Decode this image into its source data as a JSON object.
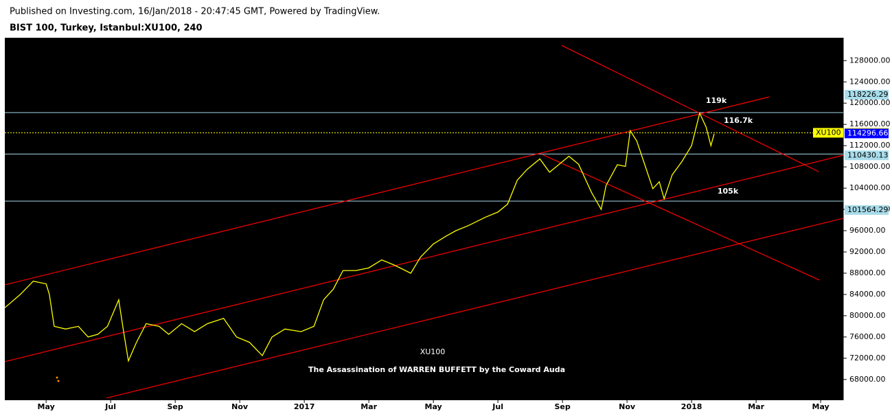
{
  "header": {
    "published": "Published on Investing.com, 16/Jan/2018 - 20:47:45 GMT, Powered by TradingView.",
    "symbol": "BIST 100, Turkey, Istanbul:XU100, 240"
  },
  "chart_data": {
    "type": "line",
    "watermark": "XU100",
    "subtitle": "The Assassination of WARREN BUFFETT by the Coward Auda",
    "xlim": [
      -1.28,
      24.7
    ],
    "xticks": [
      {
        "value": 0,
        "label": "May"
      },
      {
        "value": 2,
        "label": "Jul"
      },
      {
        "value": 4,
        "label": "Sep"
      },
      {
        "value": 6,
        "label": "Nov"
      },
      {
        "value": 8,
        "label": "2017"
      },
      {
        "value": 10,
        "label": "Mar"
      },
      {
        "value": 12,
        "label": "May"
      },
      {
        "value": 14,
        "label": "Jul"
      },
      {
        "value": 16,
        "label": "Sep"
      },
      {
        "value": 18,
        "label": "Nov"
      },
      {
        "value": 20,
        "label": "2018"
      },
      {
        "value": 22,
        "label": "Mar"
      },
      {
        "value": 24,
        "label": "May"
      }
    ],
    "ylim": [
      64100,
      132300
    ],
    "yticks": [
      {
        "value": 68000,
        "label": "68000.00"
      },
      {
        "value": 72000,
        "label": "72000.00"
      },
      {
        "value": 76000,
        "label": "76000.00"
      },
      {
        "value": 80000,
        "label": "80000.00"
      },
      {
        "value": 84000,
        "label": "84000.00"
      },
      {
        "value": 88000,
        "label": "88000.00"
      },
      {
        "value": 92000,
        "label": "92000.00"
      },
      {
        "value": 96000,
        "label": "96000.00"
      },
      {
        "value": 100000,
        "label": "100000.00"
      },
      {
        "value": 104000,
        "label": "104000.00"
      },
      {
        "value": 108000,
        "label": "108000.00"
      },
      {
        "value": 112000,
        "label": "112000.00"
      },
      {
        "value": 116000,
        "label": "116000.00"
      },
      {
        "value": 120000,
        "label": "120000.00"
      },
      {
        "value": 124000,
        "label": "124000.00"
      },
      {
        "value": 128000,
        "label": "128000.00"
      }
    ],
    "series": [
      {
        "name": "XU100",
        "color": "#ffff00",
        "x": [
          -1.28,
          -0.8,
          -0.4,
          0.0,
          0.1,
          0.25,
          0.6,
          1.0,
          1.3,
          1.6,
          1.9,
          2.25,
          2.4,
          2.55,
          2.8,
          3.1,
          3.5,
          3.8,
          4.2,
          4.6,
          5.0,
          5.5,
          5.9,
          6.3,
          6.7,
          7.0,
          7.4,
          7.9,
          8.3,
          8.6,
          8.9,
          9.2,
          9.6,
          10.0,
          10.4,
          10.8,
          11.3,
          11.6,
          12.0,
          12.4,
          12.7,
          13.1,
          13.6,
          14.0,
          14.3,
          14.6,
          14.9,
          15.3,
          15.6,
          15.9,
          16.2,
          16.5,
          16.9,
          17.2,
          17.35,
          17.7,
          17.95,
          18.1,
          18.3,
          18.55,
          18.8,
          19.0,
          19.15,
          19.4,
          19.7,
          20.0,
          20.25,
          20.45,
          20.6,
          20.7
        ],
        "values": [
          81500,
          84000,
          86500,
          86000,
          84000,
          78000,
          77500,
          78000,
          76000,
          76500,
          78000,
          83000,
          77000,
          71500,
          75000,
          78500,
          78000,
          76500,
          78500,
          77000,
          78500,
          79500,
          76000,
          75000,
          72500,
          76000,
          77500,
          77000,
          78000,
          83000,
          85000,
          88500,
          88500,
          89000,
          90500,
          89500,
          88000,
          91000,
          93500,
          95000,
          96000,
          97000,
          98500,
          99500,
          101000,
          105500,
          107500,
          109500,
          107000,
          108500,
          110000,
          108500,
          103200,
          100000,
          104500,
          108400,
          108100,
          114800,
          112900,
          108400,
          103900,
          105200,
          102000,
          106500,
          109000,
          112000,
          118100,
          115500,
          112000,
          114200
        ]
      }
    ],
    "levels": [
      {
        "value": 118226.29,
        "color": "#a8dcea",
        "line": "solid"
      },
      {
        "value": 114418.36,
        "color": "#ffff00",
        "line": "dotted",
        "name": "XU100"
      },
      {
        "value": 114296.66,
        "color": "#0000ff",
        "line": "none"
      },
      {
        "value": 110430.13,
        "color": "#a8dcea",
        "line": "solid"
      },
      {
        "value": 101564.29,
        "color": "#a8dcea",
        "line": "solid"
      }
    ],
    "trendline_color": "#ff0000",
    "trendlines": [
      {
        "x": [
          -1.28,
          22.4
        ],
        "y": [
          85806,
          121161
        ]
      },
      {
        "x": [
          -1.28,
          24.7
        ],
        "y": [
          71355,
          110194
        ]
      },
      {
        "x": [
          1.87,
          24.7
        ],
        "y": [
          64516,
          98323
        ]
      },
      {
        "x": [
          15.98,
          23.94
        ],
        "y": [
          130839,
          107097
        ]
      },
      {
        "x": [
          15.38,
          23.96
        ],
        "y": [
          110323,
          86710
        ]
      }
    ],
    "annotations": [
      "119k",
      "116.7k",
      "105k"
    ]
  }
}
